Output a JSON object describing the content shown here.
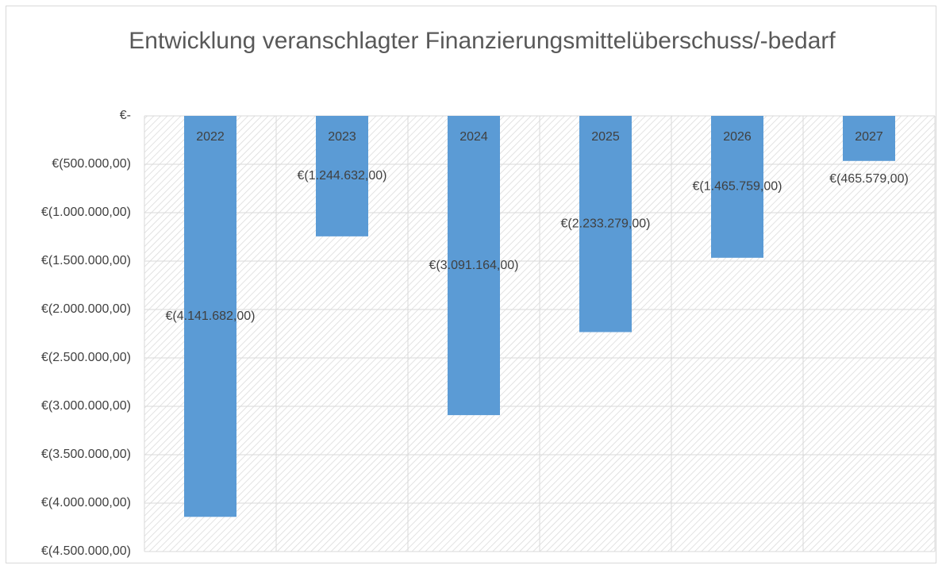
{
  "chart_data": {
    "type": "bar",
    "title": "Entwicklung veranschlagter Finanzierungsmittelüberschuss/-bedarf",
    "categories": [
      "2022",
      "2023",
      "2024",
      "2025",
      "2026",
      "2027"
    ],
    "values": [
      -4141682,
      -1244632,
      -3091164,
      -2233279,
      -1465759,
      -465579
    ],
    "value_labels": [
      "€(4.141.682,00)",
      "€(1.244.632,00)",
      "€(3.091.164,00)",
      "€(2.233.279,00)",
      "€(1.465.759,00)",
      "€(465.579,00)"
    ],
    "color": "#5b9bd5",
    "ylim": [
      -4500000,
      0
    ],
    "yticks": [
      {
        "value": 0,
        "label": "€-"
      },
      {
        "value": -500000,
        "label": "€(500.000,00)"
      },
      {
        "value": -1000000,
        "label": "€(1.000.000,00)"
      },
      {
        "value": -1500000,
        "label": "€(1.500.000,00)"
      },
      {
        "value": -2000000,
        "label": "€(2.000.000,00)"
      },
      {
        "value": -2500000,
        "label": "€(2.500.000,00)"
      },
      {
        "value": -3000000,
        "label": "€(3.000.000,00)"
      },
      {
        "value": -3500000,
        "label": "€(3.500.000,00)"
      },
      {
        "value": -4000000,
        "label": "€(4.000.000,00)"
      },
      {
        "value": -4500000,
        "label": "€(4.500.000,00)"
      }
    ],
    "grid": true
  }
}
